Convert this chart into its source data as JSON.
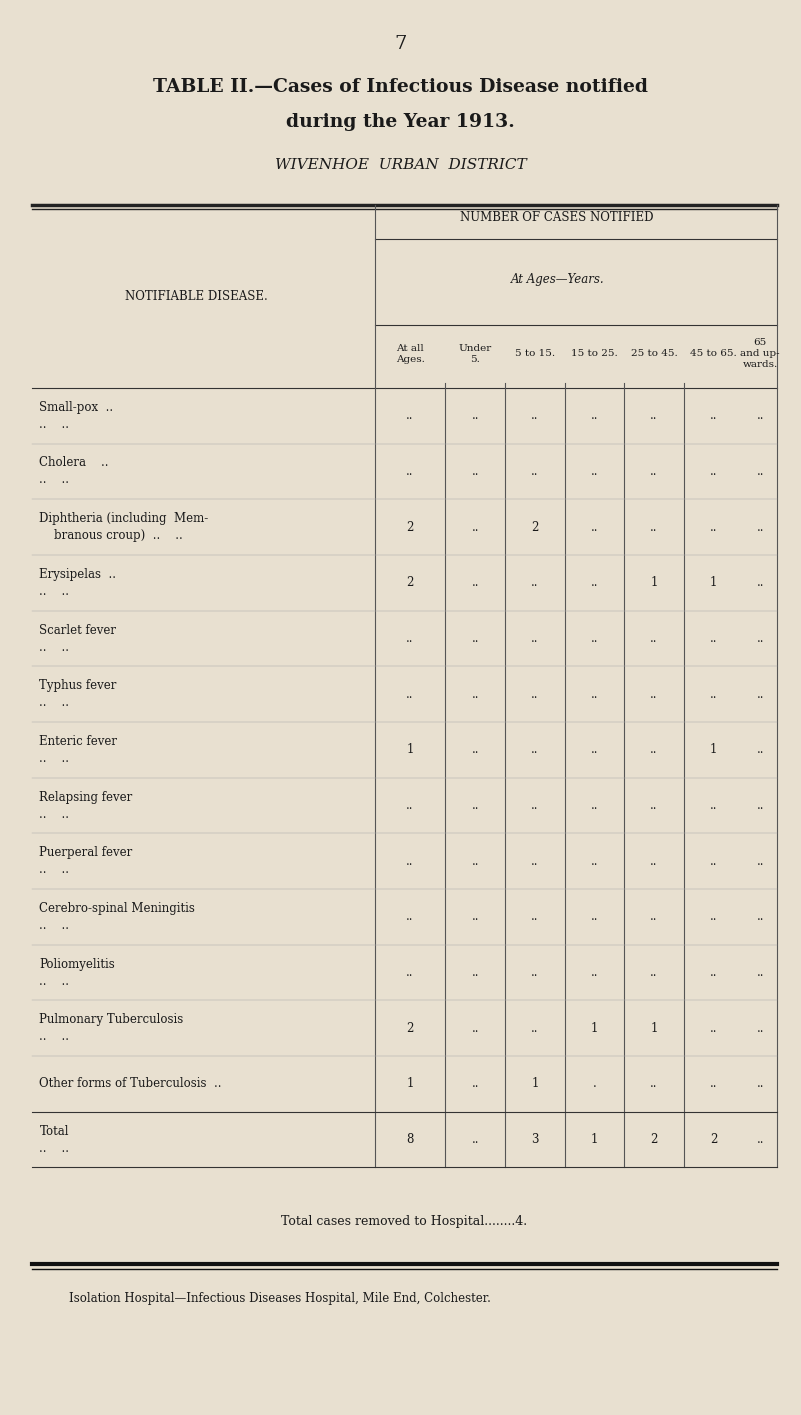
{
  "bg_color": "#e8e0d0",
  "text_color": "#1a1a1a",
  "page_number": "7",
  "title_line1": "TABLE II.—Cases of Infectious Disease notified",
  "title_line2": "during the Year 1913.",
  "subtitle": "WIVENHOE  URBAN  DISTRICT",
  "header_row1": "NUMBER OF CASES NOTIFIED",
  "header_row2": "At Ages—Years.",
  "col_headers": [
    "At all\nAges.",
    "Under\n5.",
    "5 to 15.",
    "15 to 25.",
    "25 to 45.",
    "45 to 65.",
    "65\nand up-\nwards."
  ],
  "left_header": "NOTIFIABLE DISEASE.",
  "diseases_line1": [
    "Small-pox  ..",
    "Cholera    ..",
    "Diphtheria (including  Mem-",
    "Erysipelas  ..",
    "Scarlet fever",
    "Typhus fever",
    "Enteric fever",
    "Relapsing fever",
    "Puerperal fever",
    "Cerebro-spinal Meningitis",
    "Poliomyelitis",
    "Pulmonary Tuberculosis",
    "Other forms of Tuberculosis  ..",
    "Total"
  ],
  "diseases_line2": [
    "..    ..",
    "..    ..",
    "    branous croup)  ..    ..",
    "..    ..",
    "..    ..",
    "..    ..",
    "..    ..",
    "..    ..",
    "..    ..",
    "..    ..",
    "..    ..",
    "..    ..",
    "",
    "..    .."
  ],
  "data": [
    [
      "..",
      "..",
      "..",
      "..",
      "..",
      "..",
      ".."
    ],
    [
      "..",
      "..",
      "..",
      "..",
      "..",
      "..",
      ".."
    ],
    [
      "2",
      "..",
      "2",
      "..",
      "..",
      "..",
      ".."
    ],
    [
      "2",
      "..",
      "..",
      "..",
      "1",
      "1",
      ".."
    ],
    [
      "..",
      "..",
      "..",
      "..",
      "..",
      "..",
      ".."
    ],
    [
      "..",
      "..",
      "..",
      "..",
      "..",
      "..",
      ".."
    ],
    [
      "1",
      "..",
      "..",
      "..",
      "..",
      "1",
      ".."
    ],
    [
      "..",
      "..",
      "..",
      "..",
      "..",
      "..",
      ".."
    ],
    [
      "..",
      "..",
      "..",
      "..",
      "..",
      "..",
      ".."
    ],
    [
      "..",
      "..",
      "..",
      "..",
      "..",
      "..",
      ".."
    ],
    [
      "..",
      "..",
      "..",
      "..",
      "..",
      "..",
      ".."
    ],
    [
      "2",
      "..",
      "..",
      "1",
      "1",
      "..",
      ".."
    ],
    [
      "1",
      "..",
      "1",
      ".",
      "..",
      "..",
      ".."
    ],
    [
      "8",
      "..",
      "3",
      "1",
      "2",
      "2",
      ".."
    ]
  ],
  "footer_text": "Total cases removed to Hospital........4.",
  "isolation_text": "Isolation Hospital—Infectious Diseases Hospital, Mile End, Colchester."
}
